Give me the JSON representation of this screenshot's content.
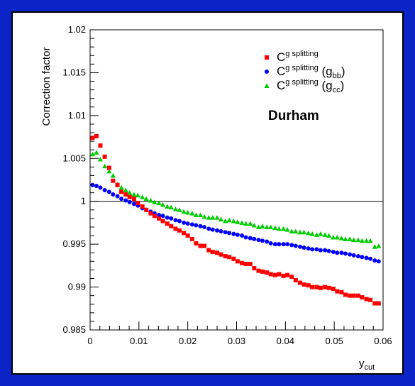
{
  "chart_data": {
    "type": "scatter",
    "ylabel": "Correction factor",
    "xlabel_main": "y",
    "xlabel_sub": "cut",
    "xlim": [
      0,
      0.06
    ],
    "ylim": [
      0.985,
      1.02
    ],
    "x_ticks": [
      "0",
      "0.01",
      "0.02",
      "0.03",
      "0.04",
      "0.05",
      "0.06"
    ],
    "y_ticks": [
      "0.985",
      "0.99",
      "0.995",
      "1",
      "1.005",
      "1.01",
      "1.015",
      "1.02"
    ],
    "reference_line": 1.0,
    "annotation": "Durham",
    "legend_placement": "top-right",
    "legend": [
      {
        "base": "C",
        "sup": "g splitting",
        "paren": "",
        "sub": "",
        "marker": "square",
        "color": "#ff0000"
      },
      {
        "base": "C",
        "sup": "g splitting",
        "paren": "g",
        "sub": "bb",
        "marker": "circle",
        "color": "#0000ff"
      },
      {
        "base": "C",
        "sup": "g splitting",
        "paren": "g",
        "sub": "cc",
        "marker": "triangle",
        "color": "#00cc00"
      }
    ],
    "series": [
      {
        "marker": "square",
        "color": "#ff0000",
        "x": [
          0.0005,
          0.0013,
          0.0021,
          0.003,
          0.0039,
          0.0047,
          0.0056,
          0.0064,
          0.0073,
          0.0081,
          0.009,
          0.0098,
          0.0107,
          0.0115,
          0.0124,
          0.0132,
          0.0141,
          0.0149,
          0.0158,
          0.0166,
          0.0175,
          0.0183,
          0.0192,
          0.02,
          0.0209,
          0.0217,
          0.0226,
          0.0234,
          0.0243,
          0.0251,
          0.026,
          0.0268,
          0.0277,
          0.0285,
          0.0294,
          0.0302,
          0.0311,
          0.0319,
          0.0328,
          0.0336,
          0.0345,
          0.0353,
          0.0362,
          0.037,
          0.0379,
          0.0387,
          0.0396,
          0.0404,
          0.0413,
          0.0421,
          0.043,
          0.0438,
          0.0447,
          0.0455,
          0.0464,
          0.0472,
          0.0481,
          0.0489,
          0.0498,
          0.0506,
          0.0515,
          0.0523,
          0.0532,
          0.054,
          0.0549,
          0.0557,
          0.0566,
          0.0574,
          0.0583,
          0.0591
        ],
        "y": [
          1.0074,
          1.0076,
          1.0065,
          1.0052,
          1.0039,
          1.0024,
          1.0019,
          1.0011,
          1.0008,
          1.0005,
          1.0003,
          0.9998,
          0.9994,
          0.999,
          0.9986,
          0.9983,
          0.998,
          0.9977,
          0.9974,
          0.9971,
          0.9968,
          0.9966,
          0.9963,
          0.996,
          0.9956,
          0.9951,
          0.9948,
          0.9948,
          0.9943,
          0.9941,
          0.994,
          0.9938,
          0.9936,
          0.9935,
          0.9933,
          0.993,
          0.9928,
          0.9927,
          0.9927,
          0.9922,
          0.9919,
          0.9918,
          0.9917,
          0.9915,
          0.9914,
          0.9915,
          0.9913,
          0.9914,
          0.9912,
          0.9908,
          0.9905,
          0.9903,
          0.9902,
          0.99,
          0.99,
          0.9899,
          0.99,
          0.9899,
          0.9898,
          0.9895,
          0.9894,
          0.9891,
          0.989,
          0.989,
          0.989,
          0.9888,
          0.9886,
          0.9885,
          0.9881,
          0.9881
        ]
      },
      {
        "marker": "circle",
        "color": "#0000ff",
        "x": [
          0.0005,
          0.0013,
          0.0021,
          0.003,
          0.0039,
          0.0047,
          0.0056,
          0.0064,
          0.0073,
          0.0081,
          0.009,
          0.0098,
          0.0107,
          0.0115,
          0.0124,
          0.0132,
          0.0141,
          0.0149,
          0.0158,
          0.0166,
          0.0175,
          0.0183,
          0.0192,
          0.02,
          0.0209,
          0.0217,
          0.0226,
          0.0234,
          0.0243,
          0.0251,
          0.026,
          0.0268,
          0.0277,
          0.0285,
          0.0294,
          0.0302,
          0.0311,
          0.0319,
          0.0328,
          0.0336,
          0.0345,
          0.0353,
          0.0362,
          0.037,
          0.0379,
          0.0387,
          0.0396,
          0.0404,
          0.0413,
          0.0421,
          0.043,
          0.0438,
          0.0447,
          0.0455,
          0.0464,
          0.0472,
          0.0481,
          0.0489,
          0.0498,
          0.0506,
          0.0515,
          0.0523,
          0.0532,
          0.054,
          0.0549,
          0.0557,
          0.0566,
          0.0574,
          0.0583,
          0.0591
        ],
        "y": [
          1.0019,
          1.0018,
          1.0016,
          1.0013,
          1.0011,
          1.0008,
          1.0006,
          1.0003,
          1.0001,
          0.9999,
          0.9997,
          0.9995,
          0.9992,
          0.999,
          0.9988,
          0.9986,
          0.9984,
          0.9983,
          0.9981,
          0.998,
          0.9978,
          0.9977,
          0.9975,
          0.9974,
          0.9973,
          0.9972,
          0.9971,
          0.997,
          0.9968,
          0.9967,
          0.9966,
          0.9965,
          0.9964,
          0.9963,
          0.9962,
          0.9961,
          0.996,
          0.9958,
          0.9957,
          0.9956,
          0.9955,
          0.9954,
          0.9953,
          0.9951,
          0.995,
          0.995,
          0.995,
          0.995,
          0.9949,
          0.9948,
          0.9947,
          0.9946,
          0.9945,
          0.9944,
          0.9944,
          0.9943,
          0.9943,
          0.9942,
          0.9941,
          0.994,
          0.994,
          0.9939,
          0.9938,
          0.9937,
          0.9936,
          0.9935,
          0.9934,
          0.9933,
          0.9931,
          0.993
        ]
      },
      {
        "marker": "triangle",
        "color": "#00cc00",
        "x": [
          0.0005,
          0.0013,
          0.0021,
          0.003,
          0.0039,
          0.0047,
          0.0056,
          0.0064,
          0.0073,
          0.0081,
          0.009,
          0.0098,
          0.0107,
          0.0115,
          0.0124,
          0.0132,
          0.0141,
          0.0149,
          0.0158,
          0.0166,
          0.0175,
          0.0183,
          0.0192,
          0.02,
          0.0209,
          0.0217,
          0.0226,
          0.0234,
          0.0243,
          0.0251,
          0.026,
          0.0268,
          0.0277,
          0.0285,
          0.0294,
          0.0302,
          0.0311,
          0.0319,
          0.0328,
          0.0336,
          0.0345,
          0.0353,
          0.0362,
          0.037,
          0.0379,
          0.0387,
          0.0396,
          0.0404,
          0.0413,
          0.0421,
          0.043,
          0.0438,
          0.0447,
          0.0455,
          0.0464,
          0.0472,
          0.0481,
          0.0489,
          0.0498,
          0.0506,
          0.0515,
          0.0523,
          0.0532,
          0.054,
          0.0549,
          0.0557,
          0.0566,
          0.0574,
          0.0583,
          0.0591
        ],
        "y": [
          1.0055,
          1.0057,
          1.0049,
          1.0041,
          1.0035,
          1.003,
          1.002,
          1.0016,
          1.0013,
          1.001,
          1.0008,
          1.0007,
          1.0005,
          1.0003,
          1.0001,
          0.9999,
          0.9998,
          0.9996,
          0.9994,
          0.9993,
          0.9991,
          0.999,
          0.9988,
          0.9987,
          0.9986,
          0.9984,
          0.9984,
          0.9982,
          0.9981,
          0.9981,
          0.9981,
          0.9979,
          0.9977,
          0.9978,
          0.9977,
          0.9976,
          0.9975,
          0.9974,
          0.9974,
          0.9972,
          0.997,
          0.9971,
          0.997,
          0.997,
          0.9969,
          0.9968,
          0.9968,
          0.9967,
          0.9965,
          0.9965,
          0.9964,
          0.9964,
          0.9963,
          0.9962,
          0.9961,
          0.9962,
          0.9961,
          0.996,
          0.9958,
          0.9958,
          0.9957,
          0.9956,
          0.9956,
          0.9955,
          0.9955,
          0.9954,
          0.9954,
          0.9954,
          0.9947,
          0.9948
        ]
      }
    ]
  }
}
